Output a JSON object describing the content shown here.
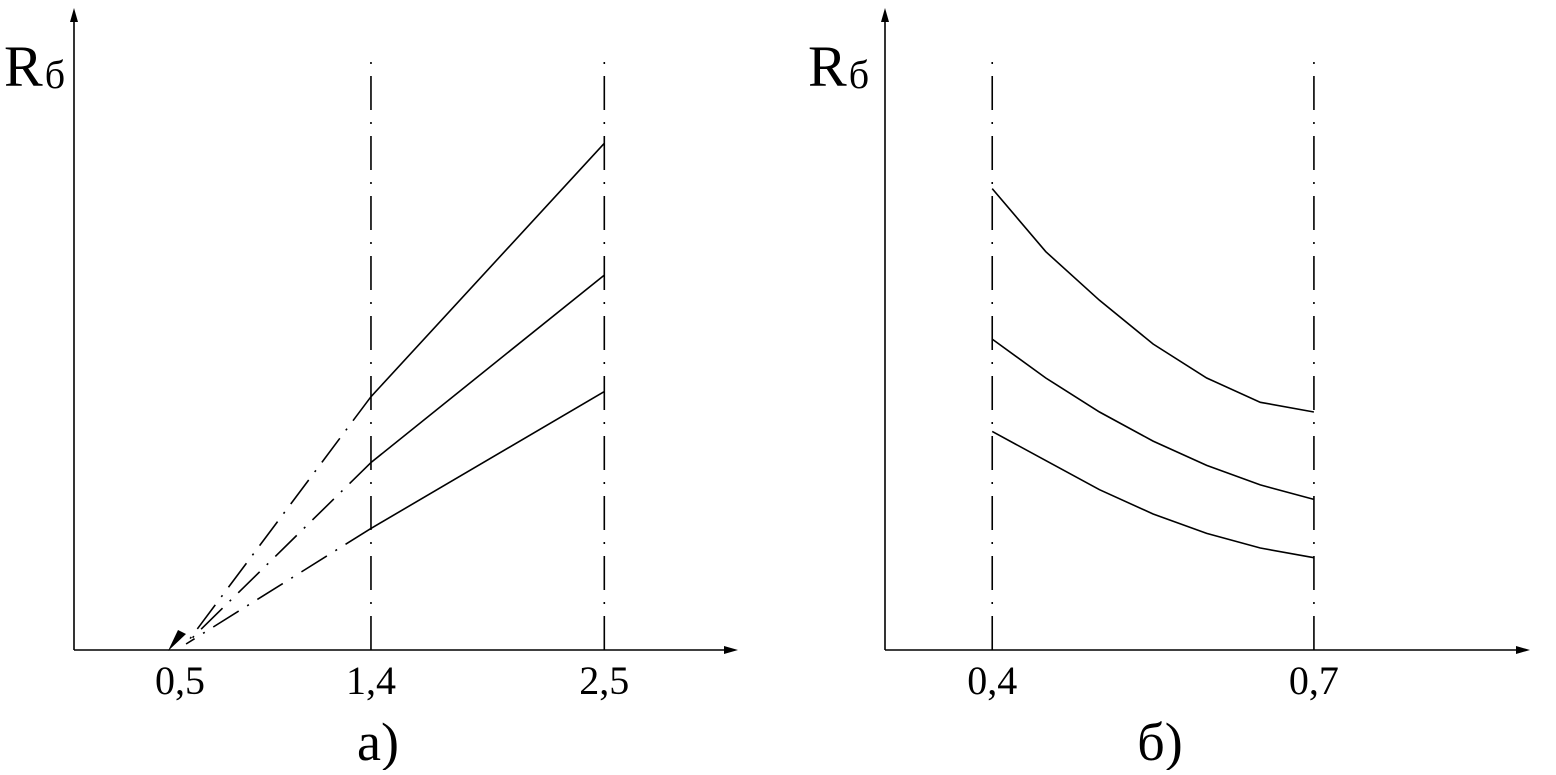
{
  "chart_data": [
    {
      "type": "line",
      "panel_label": "а)",
      "ylabel_main": "R",
      "ylabel_sub": "б",
      "xlabel": "",
      "x_ticks": [
        "0,5",
        "1,4",
        "2,5"
      ],
      "x_tick_values": [
        0.5,
        1.4,
        2.5
      ],
      "xlim": [
        0,
        3.3
      ],
      "ylim": [
        0,
        1.05
      ],
      "y_ticks": [],
      "guides_x": [
        1.4,
        2.5
      ],
      "extrapolate_to": [
        0.5,
        0
      ],
      "series": [
        {
          "x": [
            1.4,
            2.5
          ],
          "y": [
            0.5,
            1.0
          ]
        },
        {
          "x": [
            1.4,
            2.5
          ],
          "y": [
            0.37,
            0.74
          ]
        },
        {
          "x": [
            1.4,
            2.5
          ],
          "y": [
            0.24,
            0.51
          ]
        }
      ],
      "grid": false,
      "legend": "none"
    },
    {
      "type": "line",
      "panel_label": "б)",
      "ylabel_main": "R",
      "ylabel_sub": "б",
      "xlabel": "",
      "x_ticks": [
        "0,4",
        "0,7"
      ],
      "x_tick_values": [
        0.4,
        0.7
      ],
      "xlim": [
        0.3,
        0.95
      ],
      "ylim": [
        0,
        1.05
      ],
      "y_ticks": [],
      "guides_x": [
        0.4,
        0.7
      ],
      "series": [
        {
          "x": [
            0.4,
            0.45,
            0.5,
            0.55,
            0.6,
            0.65,
            0.7
          ],
          "y": [
            0.95,
            0.82,
            0.72,
            0.63,
            0.56,
            0.51,
            0.49
          ]
        },
        {
          "x": [
            0.4,
            0.45,
            0.5,
            0.55,
            0.6,
            0.65,
            0.7
          ],
          "y": [
            0.64,
            0.56,
            0.49,
            0.43,
            0.38,
            0.34,
            0.31
          ]
        },
        {
          "x": [
            0.4,
            0.45,
            0.5,
            0.55,
            0.6,
            0.65,
            0.7
          ],
          "y": [
            0.45,
            0.39,
            0.33,
            0.28,
            0.24,
            0.21,
            0.19
          ]
        }
      ],
      "grid": false,
      "legend": "none"
    }
  ]
}
